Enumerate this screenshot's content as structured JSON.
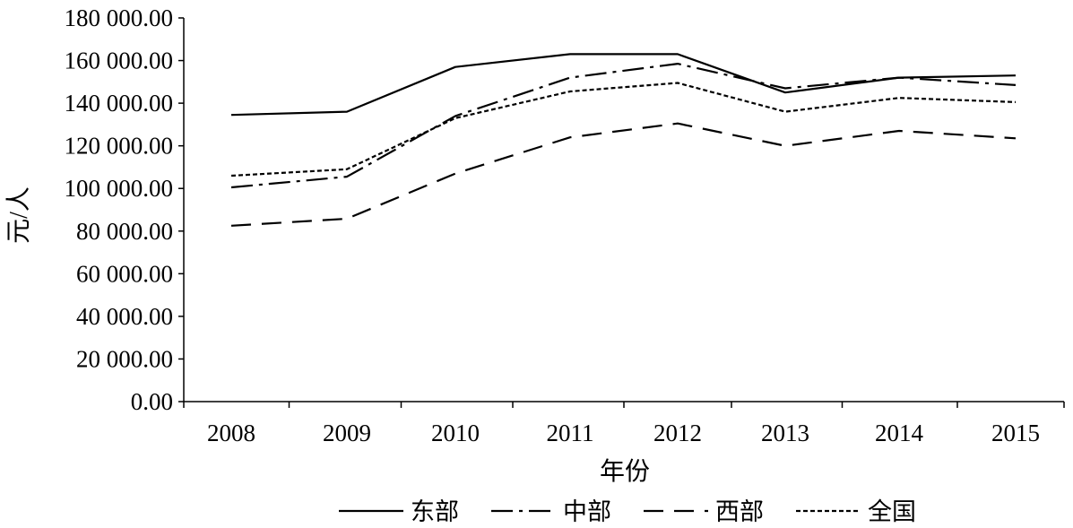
{
  "chart_data": {
    "type": "line",
    "title": "",
    "xlabel": "年份",
    "ylabel": "元/人",
    "x": [
      "2008",
      "2009",
      "2010",
      "2011",
      "2012",
      "2013",
      "2014",
      "2015"
    ],
    "ylim": [
      0,
      180000
    ],
    "yticks": [
      0,
      20000,
      40000,
      60000,
      80000,
      100000,
      120000,
      140000,
      160000,
      180000
    ],
    "ytick_labels": [
      "0.00",
      "20 000.00",
      "40 000.00",
      "60 000.00",
      "80 000.00",
      "100 000.00",
      "120 000.00",
      "140 000.00",
      "160 000.00",
      "180 000.00"
    ],
    "grid": false,
    "legend_position": "bottom",
    "series": [
      {
        "name": "东部",
        "line_style": "solid",
        "color": "#000000",
        "values": [
          134500,
          136000,
          157000,
          163000,
          163000,
          145000,
          152000,
          153000
        ]
      },
      {
        "name": "中部",
        "line_style": "dash-dot",
        "color": "#000000",
        "values": [
          100500,
          105500,
          134000,
          152000,
          158500,
          147000,
          152000,
          148500
        ]
      },
      {
        "name": "西部",
        "line_style": "dashed",
        "color": "#000000",
        "values": [
          82500,
          85800,
          107000,
          124000,
          130500,
          120000,
          127000,
          123500
        ]
      },
      {
        "name": "全国",
        "line_style": "dotted",
        "color": "#000000",
        "values": [
          106000,
          109000,
          133000,
          145500,
          149500,
          136000,
          142500,
          140500
        ]
      }
    ]
  }
}
